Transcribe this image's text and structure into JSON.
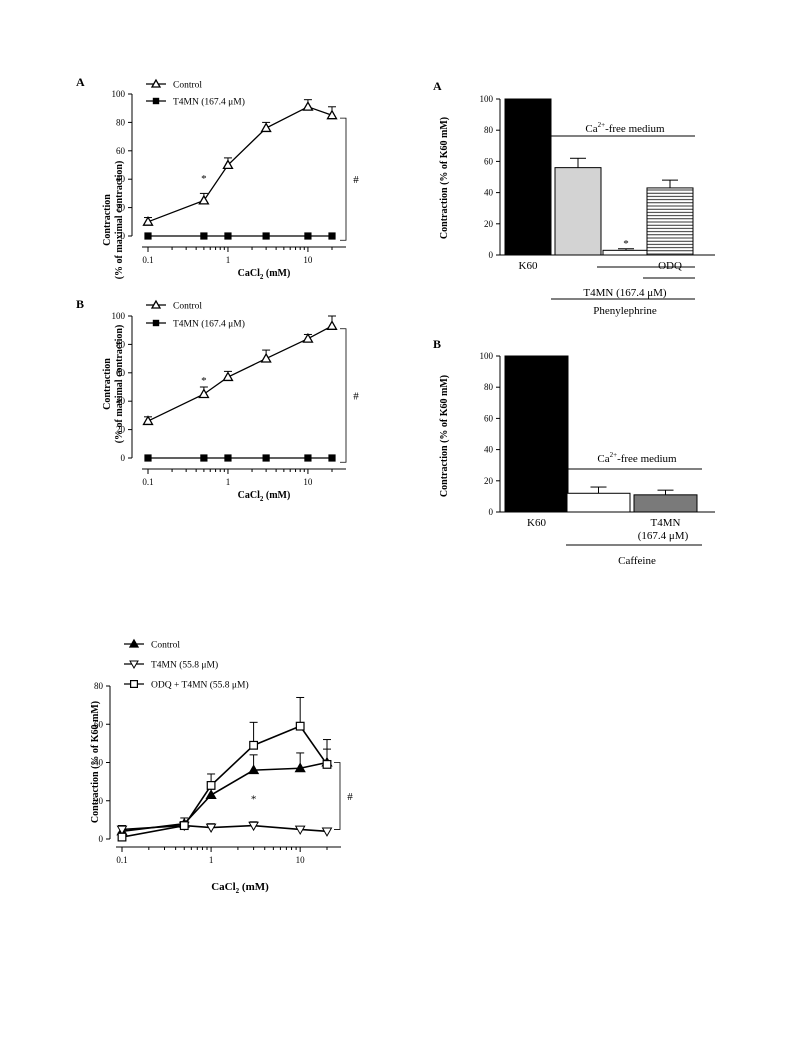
{
  "chart_data": [
    {
      "id": "line_a",
      "type": "line",
      "panel_label": "A",
      "xlabel_main": "CaCl",
      "xlabel_sub": "2",
      "xlabel_unit": " (mM)",
      "ylabel_line1": "Contraction",
      "ylabel_line2": "(% of maximal contraction)",
      "x_scale": "log",
      "xlim": [
        0.1,
        20
      ],
      "ylim": [
        0,
        100
      ],
      "x_ticks": [
        0.1,
        1,
        10
      ],
      "x_tick_labels": [
        "0.1",
        "1",
        "10"
      ],
      "y_ticks": [
        0,
        20,
        40,
        60,
        80,
        100
      ],
      "legend_position": "top-left",
      "annotations": {
        "star": "*",
        "hash": "#"
      },
      "series": [
        {
          "name": "Control",
          "marker": "open-triangle-up",
          "x": [
            0.1,
            0.5,
            1,
            3,
            10,
            20
          ],
          "y": [
            10,
            25,
            50,
            76,
            91,
            85
          ],
          "err": [
            3,
            5,
            5,
            4,
            5,
            6
          ]
        },
        {
          "name": "T4MN (167.4 μM)",
          "marker": "filled-square",
          "x": [
            0.1,
            0.5,
            1,
            3,
            10,
            20
          ],
          "y": [
            0,
            0,
            0,
            0,
            0,
            0
          ],
          "err": [
            0,
            0,
            0,
            0,
            0,
            0
          ]
        }
      ]
    },
    {
      "id": "line_b",
      "type": "line",
      "panel_label": "B",
      "xlabel_main": "CaCl",
      "xlabel_sub": "2",
      "xlabel_unit": " (mM)",
      "ylabel_line1": "Contraction",
      "ylabel_line2": "(% of maximal contraction)",
      "x_scale": "log",
      "xlim": [
        0.1,
        20
      ],
      "ylim": [
        0,
        100
      ],
      "x_ticks": [
        0.1,
        1,
        10
      ],
      "x_tick_labels": [
        "0.1",
        "1",
        "10"
      ],
      "y_ticks": [
        0,
        20,
        40,
        60,
        80,
        100
      ],
      "legend_position": "top-left",
      "annotations": {
        "star": "*",
        "hash": "#"
      },
      "series": [
        {
          "name": "Control",
          "marker": "open-triangle-up",
          "x": [
            0.1,
            0.5,
            1,
            3,
            10,
            20
          ],
          "y": [
            26,
            45,
            57,
            70,
            84,
            93
          ],
          "err": [
            3,
            5,
            4,
            6,
            3,
            7
          ]
        },
        {
          "name": "T4MN (167.4 μM)",
          "marker": "filled-square",
          "x": [
            0.1,
            0.5,
            1,
            3,
            10,
            20
          ],
          "y": [
            0,
            0,
            0,
            0,
            0,
            0
          ],
          "err": [
            0,
            0,
            0,
            0,
            0,
            0
          ]
        }
      ]
    },
    {
      "id": "bar_a",
      "type": "bar",
      "panel_label": "A",
      "ylabel": "Contraction (% of K60 mM)",
      "ylim": [
        0,
        100
      ],
      "y_ticks": [
        0,
        20,
        40,
        60,
        80,
        100
      ],
      "categories": [
        "K60",
        "",
        "",
        "ODQ"
      ],
      "values": [
        100,
        56,
        3,
        43
      ],
      "err": [
        0,
        6,
        1,
        5
      ],
      "fills": [
        "#000000",
        "#d3d3d3",
        "#ffffff",
        "hatch"
      ],
      "annotations": {
        "star": "*"
      },
      "bracket_labels": {
        "medium_main": "Ca",
        "medium_sup": "2+",
        "medium_rest": "-free medium",
        "drug": "T4MN (167.4 μM)",
        "agonist": "Phenylephrine"
      }
    },
    {
      "id": "bar_b",
      "type": "bar",
      "panel_label": "B",
      "ylabel": "Contraction (% of K60 mM)",
      "ylim": [
        0,
        100
      ],
      "y_ticks": [
        0,
        20,
        40,
        60,
        80,
        100
      ],
      "categories": [
        "K60",
        "",
        "T4MN"
      ],
      "category_sublabel": "(167.4 μM)",
      "values": [
        100,
        12,
        11
      ],
      "err": [
        0,
        4,
        3
      ],
      "fills": [
        "#000000",
        "#ffffff",
        "#7a7a7a"
      ],
      "bracket_labels": {
        "medium_main": "Ca",
        "medium_sup": "2+",
        "medium_rest": "-free medium",
        "agonist": "Caffeine"
      }
    },
    {
      "id": "line_c",
      "type": "line",
      "xlabel_main": "CaCl",
      "xlabel_sub": "2",
      "xlabel_unit": "  (mM)",
      "ylabel": "Contraction (% of K60 mM)",
      "x_scale": "log",
      "xlim": [
        0.1,
        20
      ],
      "ylim": [
        0,
        80
      ],
      "x_ticks": [
        0.1,
        1,
        10
      ],
      "x_tick_labels": [
        "0.1",
        "1",
        "10"
      ],
      "y_ticks": [
        0,
        20,
        40,
        60,
        80
      ],
      "legend_position": "top-left",
      "annotations": {
        "star": "*",
        "hash": "#"
      },
      "series": [
        {
          "name": "Control",
          "marker": "filled-triangle-up",
          "x": [
            0.1,
            0.5,
            1,
            3,
            10,
            20
          ],
          "y": [
            4,
            8,
            23,
            36,
            37,
            40
          ],
          "err": [
            3,
            3,
            6,
            8,
            8,
            7
          ]
        },
        {
          "name": "T4MN (55.8 μM)",
          "marker": "open-triangle-down",
          "x": [
            0.1,
            0.5,
            1,
            3,
            10,
            20
          ],
          "y": [
            5,
            7,
            6,
            7,
            5,
            4
          ],
          "err": [
            2,
            2,
            2,
            2,
            1,
            1
          ]
        },
        {
          "name": "ODQ + T4MN (55.8 μM)",
          "marker": "open-square",
          "x": [
            0.1,
            0.5,
            1,
            3,
            10,
            20
          ],
          "y": [
            1,
            7,
            28,
            49,
            59,
            39
          ],
          "err": [
            1,
            2,
            6,
            12,
            15,
            13
          ]
        }
      ]
    }
  ]
}
